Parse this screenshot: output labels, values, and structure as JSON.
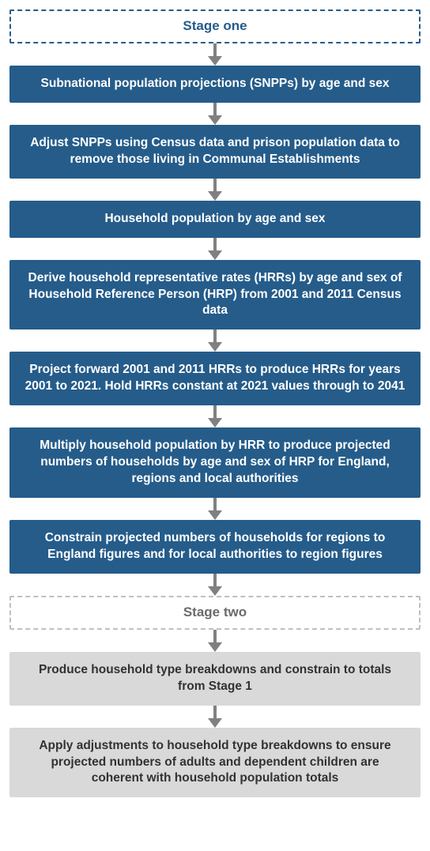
{
  "diagram": {
    "type": "flowchart",
    "direction": "top-to-bottom",
    "background_color": "#ffffff",
    "arrow_color": "#808080",
    "stage_one_header": {
      "label": "Stage one",
      "border_style": "dashed",
      "border_color": "#255c8a",
      "text_color": "#255c8a",
      "fill": "#ffffff",
      "font_size": 17,
      "font_weight": "bold"
    },
    "stage_two_header": {
      "label": "Stage two",
      "border_style": "dashed",
      "border_color": "#bfbfbf",
      "text_color": "#6a6a6a",
      "fill": "#ffffff",
      "font_size": 17,
      "font_weight": "bold"
    },
    "blue_box_style": {
      "fill": "#255c8a",
      "text_color": "#ffffff",
      "font_size": 15.5,
      "font_weight": "bold"
    },
    "grey_box_style": {
      "fill": "#d9d9d9",
      "text_color": "#323232",
      "font_size": 15.5,
      "font_weight": "bold"
    },
    "nodes": [
      {
        "id": "h1",
        "kind": "header-one",
        "text": "Stage one"
      },
      {
        "id": "n1",
        "kind": "blue",
        "text": "Subnational population projections (SNPPs) by age and sex"
      },
      {
        "id": "n2",
        "kind": "blue",
        "text": "Adjust SNPPs using Census data and prison population data to remove those living in Communal Establishments"
      },
      {
        "id": "n3",
        "kind": "blue",
        "text": "Household population by age and sex"
      },
      {
        "id": "n4",
        "kind": "blue",
        "text": "Derive household representative rates (HRRs) by age and sex of Household Reference Person (HRP) from 2001 and 2011 Census data"
      },
      {
        "id": "n5",
        "kind": "blue",
        "text": "Project forward 2001 and 2011 HRRs to produce HRRs for years 2001 to 2021. Hold HRRs constant at 2021 values through to 2041"
      },
      {
        "id": "n6",
        "kind": "blue",
        "text": "Multiply household population by HRR to produce projected numbers of households by age and sex of HRP for England, regions and local authorities"
      },
      {
        "id": "n7",
        "kind": "blue",
        "text": "Constrain projected numbers of households for regions to England figures and for local authorities to region figures"
      },
      {
        "id": "h2",
        "kind": "header-two",
        "text": "Stage two"
      },
      {
        "id": "n8",
        "kind": "grey",
        "text": "Produce household type breakdowns and constrain to totals from Stage 1"
      },
      {
        "id": "n9",
        "kind": "grey",
        "text": "Apply adjustments to household type breakdowns to ensure projected numbers of adults and dependent children are coherent with household population totals"
      }
    ]
  }
}
